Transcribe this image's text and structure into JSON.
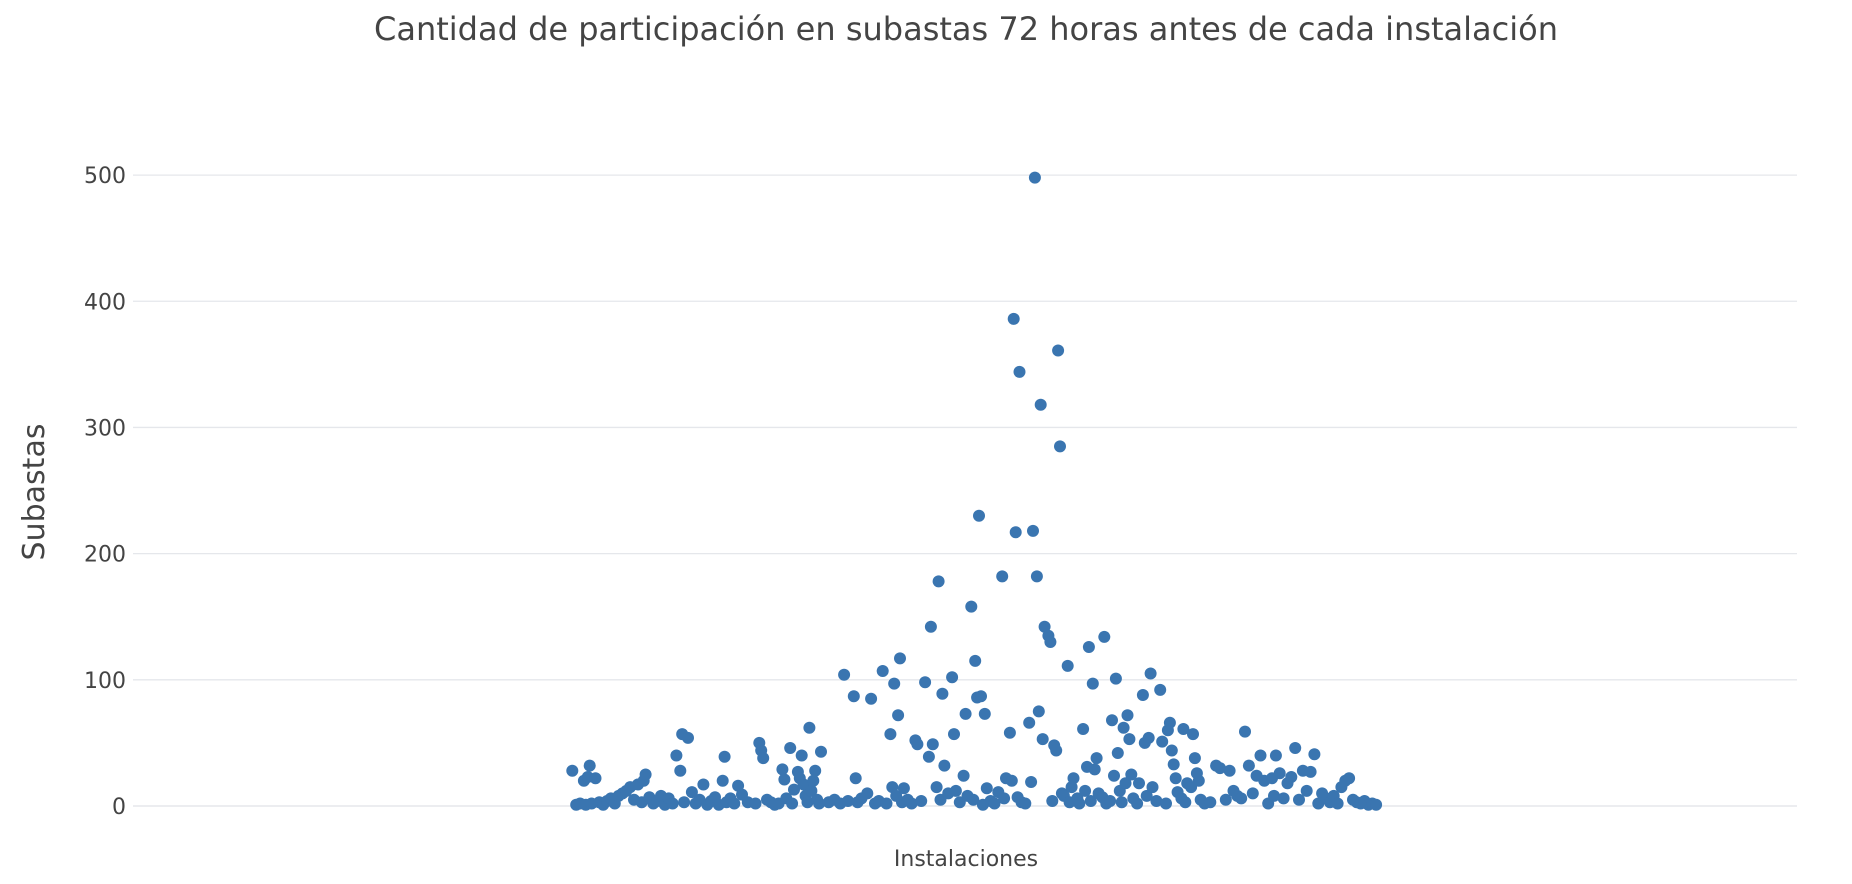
{
  "chart_data": {
    "type": "scatter",
    "title": "Cantidad de participación en subastas 72 horas antes de cada instalación",
    "xlabel": "Instalaciones",
    "ylabel": "Subastas",
    "ylim": [
      0,
      530
    ],
    "yticks": [
      "0",
      "100",
      "200",
      "300",
      "400",
      "500"
    ],
    "grid": true,
    "marker_color": "#3a75b0",
    "series": [
      {
        "points": [
          [
            9,
            28
          ],
          [
            11,
            1
          ],
          [
            13,
            2
          ],
          [
            15,
            20
          ],
          [
            16,
            1
          ],
          [
            17,
            23
          ],
          [
            18,
            32
          ],
          [
            19,
            2
          ],
          [
            21,
            22
          ],
          [
            23,
            3
          ],
          [
            25,
            1
          ],
          [
            27,
            4
          ],
          [
            29,
            6
          ],
          [
            31,
            2
          ],
          [
            33,
            8
          ],
          [
            35,
            10
          ],
          [
            37,
            12
          ],
          [
            39,
            15
          ],
          [
            41,
            5
          ],
          [
            43,
            17
          ],
          [
            45,
            3
          ],
          [
            46,
            20
          ],
          [
            47,
            25
          ],
          [
            49,
            7
          ],
          [
            51,
            2
          ],
          [
            53,
            4
          ],
          [
            55,
            8
          ],
          [
            57,
            1
          ],
          [
            59,
            6
          ],
          [
            61,
            2
          ],
          [
            63,
            40
          ],
          [
            65,
            28
          ],
          [
            66,
            57
          ],
          [
            67,
            3
          ],
          [
            69,
            54
          ],
          [
            71,
            11
          ],
          [
            73,
            2
          ],
          [
            75,
            5
          ],
          [
            77,
            17
          ],
          [
            79,
            1
          ],
          [
            81,
            4
          ],
          [
            83,
            7
          ],
          [
            85,
            1
          ],
          [
            87,
            20
          ],
          [
            88,
            39
          ],
          [
            89,
            3
          ],
          [
            91,
            6
          ],
          [
            93,
            2
          ],
          [
            95,
            16
          ],
          [
            97,
            9
          ],
          [
            100,
            3
          ],
          [
            104,
            2
          ],
          [
            106,
            50
          ],
          [
            107,
            44
          ],
          [
            108,
            38
          ],
          [
            110,
            5
          ],
          [
            112,
            3
          ],
          [
            114,
            1
          ],
          [
            116,
            2
          ],
          [
            118,
            29
          ],
          [
            119,
            21
          ],
          [
            120,
            6
          ],
          [
            122,
            46
          ],
          [
            123,
            2
          ],
          [
            124,
            13
          ],
          [
            126,
            27
          ],
          [
            127,
            22
          ],
          [
            128,
            40
          ],
          [
            129,
            17
          ],
          [
            130,
            8
          ],
          [
            131,
            3
          ],
          [
            132,
            62
          ],
          [
            133,
            12
          ],
          [
            134,
            20
          ],
          [
            135,
            28
          ],
          [
            136,
            5
          ],
          [
            137,
            2
          ],
          [
            138,
            43
          ],
          [
            142,
            3
          ],
          [
            145,
            5
          ],
          [
            148,
            2
          ],
          [
            150,
            104
          ],
          [
            152,
            4
          ],
          [
            155,
            87
          ],
          [
            156,
            22
          ],
          [
            157,
            3
          ],
          [
            159,
            6
          ],
          [
            162,
            10
          ],
          [
            164,
            85
          ],
          [
            166,
            2
          ],
          [
            168,
            4
          ],
          [
            170,
            107
          ],
          [
            172,
            2
          ],
          [
            174,
            57
          ],
          [
            175,
            15
          ],
          [
            176,
            97
          ],
          [
            177,
            8
          ],
          [
            178,
            72
          ],
          [
            179,
            117
          ],
          [
            180,
            3
          ],
          [
            181,
            14
          ],
          [
            183,
            5
          ],
          [
            185,
            2
          ],
          [
            187,
            52
          ],
          [
            188,
            49
          ],
          [
            190,
            4
          ],
          [
            192,
            98
          ],
          [
            194,
            39
          ],
          [
            195,
            142
          ],
          [
            196,
            49
          ],
          [
            198,
            15
          ],
          [
            199,
            178
          ],
          [
            200,
            5
          ],
          [
            201,
            89
          ],
          [
            202,
            32
          ],
          [
            204,
            10
          ],
          [
            206,
            102
          ],
          [
            207,
            57
          ],
          [
            208,
            12
          ],
          [
            210,
            3
          ],
          [
            212,
            24
          ],
          [
            213,
            73
          ],
          [
            214,
            8
          ],
          [
            216,
            158
          ],
          [
            217,
            5
          ],
          [
            218,
            115
          ],
          [
            219,
            86
          ],
          [
            220,
            230
          ],
          [
            221,
            87
          ],
          [
            222,
            1
          ],
          [
            223,
            73
          ],
          [
            224,
            14
          ],
          [
            226,
            4
          ],
          [
            228,
            2
          ],
          [
            230,
            11
          ],
          [
            232,
            182
          ],
          [
            233,
            6
          ],
          [
            234,
            22
          ],
          [
            236,
            58
          ],
          [
            237,
            20
          ],
          [
            238,
            386
          ],
          [
            239,
            217
          ],
          [
            240,
            7
          ],
          [
            241,
            344
          ],
          [
            242,
            3
          ],
          [
            244,
            2
          ],
          [
            246,
            66
          ],
          [
            247,
            19
          ],
          [
            248,
            218
          ],
          [
            249,
            498
          ],
          [
            250,
            182
          ],
          [
            251,
            75
          ],
          [
            252,
            318
          ],
          [
            253,
            53
          ],
          [
            254,
            142
          ],
          [
            256,
            135
          ],
          [
            257,
            130
          ],
          [
            258,
            4
          ],
          [
            259,
            48
          ],
          [
            260,
            44
          ],
          [
            261,
            361
          ],
          [
            262,
            285
          ],
          [
            263,
            10
          ],
          [
            264,
            8
          ],
          [
            266,
            111
          ],
          [
            267,
            3
          ],
          [
            268,
            15
          ],
          [
            269,
            22
          ],
          [
            271,
            6
          ],
          [
            272,
            2
          ],
          [
            274,
            61
          ],
          [
            275,
            12
          ],
          [
            276,
            31
          ],
          [
            277,
            126
          ],
          [
            278,
            4
          ],
          [
            279,
            97
          ],
          [
            280,
            29
          ],
          [
            281,
            38
          ],
          [
            282,
            10
          ],
          [
            284,
            7
          ],
          [
            285,
            134
          ],
          [
            286,
            2
          ],
          [
            288,
            4
          ],
          [
            289,
            68
          ],
          [
            290,
            24
          ],
          [
            291,
            101
          ],
          [
            292,
            42
          ],
          [
            293,
            12
          ],
          [
            294,
            3
          ],
          [
            295,
            62
          ],
          [
            296,
            18
          ],
          [
            297,
            72
          ],
          [
            298,
            53
          ],
          [
            299,
            25
          ],
          [
            300,
            6
          ],
          [
            302,
            2
          ],
          [
            303,
            18
          ],
          [
            305,
            88
          ],
          [
            306,
            50
          ],
          [
            307,
            8
          ],
          [
            308,
            54
          ],
          [
            309,
            105
          ],
          [
            310,
            15
          ],
          [
            312,
            4
          ],
          [
            314,
            92
          ],
          [
            315,
            51
          ],
          [
            317,
            2
          ],
          [
            318,
            60
          ],
          [
            319,
            66
          ],
          [
            320,
            44
          ],
          [
            321,
            33
          ],
          [
            322,
            22
          ],
          [
            323,
            11
          ],
          [
            325,
            6
          ],
          [
            326,
            61
          ],
          [
            327,
            3
          ],
          [
            328,
            18
          ],
          [
            330,
            15
          ],
          [
            331,
            57
          ],
          [
            332,
            38
          ],
          [
            333,
            26
          ],
          [
            334,
            20
          ],
          [
            335,
            5
          ],
          [
            337,
            2
          ],
          [
            340,
            3
          ],
          [
            343,
            32
          ],
          [
            345,
            30
          ],
          [
            348,
            5
          ],
          [
            350,
            28
          ],
          [
            352,
            12
          ],
          [
            354,
            8
          ],
          [
            356,
            6
          ],
          [
            358,
            59
          ],
          [
            360,
            32
          ],
          [
            362,
            10
          ],
          [
            364,
            24
          ],
          [
            366,
            40
          ],
          [
            368,
            20
          ],
          [
            370,
            2
          ],
          [
            372,
            22
          ],
          [
            373,
            8
          ],
          [
            374,
            40
          ],
          [
            376,
            26
          ],
          [
            378,
            6
          ],
          [
            380,
            18
          ],
          [
            382,
            23
          ],
          [
            384,
            46
          ],
          [
            386,
            5
          ],
          [
            388,
            28
          ],
          [
            390,
            12
          ],
          [
            392,
            27
          ],
          [
            394,
            41
          ],
          [
            396,
            2
          ],
          [
            398,
            10
          ],
          [
            400,
            6
          ],
          [
            402,
            3
          ],
          [
            404,
            8
          ],
          [
            406,
            2
          ],
          [
            408,
            15
          ],
          [
            410,
            20
          ],
          [
            412,
            22
          ],
          [
            414,
            5
          ],
          [
            416,
            3
          ],
          [
            418,
            2
          ],
          [
            420,
            4
          ],
          [
            422,
            1
          ],
          [
            424,
            2
          ],
          [
            426,
            1
          ]
        ]
      }
    ]
  }
}
